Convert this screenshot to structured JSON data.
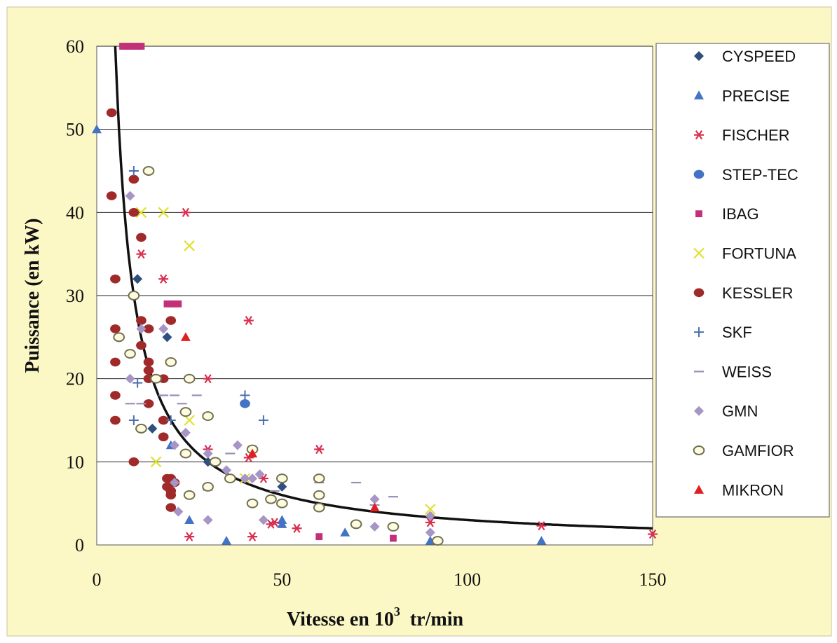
{
  "chart_data": {
    "type": "scatter",
    "title": "",
    "xlabel": "Vitesse en 10",
    "xlabel_sup": "3",
    "xlabel_tail": "tr/min",
    "ylabel": "Puissance (en kW)",
    "xlim": [
      0,
      150
    ],
    "ylim": [
      0,
      60
    ],
    "x_ticks": [
      "0",
      "50",
      "100",
      "150"
    ],
    "y_ticks": [
      "0",
      "10",
      "20",
      "30",
      "40",
      "50",
      "60"
    ],
    "grid": "horizontal",
    "legend_position": "right",
    "colors": {
      "background": "#fcf8c6",
      "plot": "#ffffff",
      "grid": "#222222",
      "curve": "#111111"
    },
    "curve": {
      "name": "",
      "type": "hyperbola",
      "constant": 300,
      "x_range": [
        5,
        150
      ]
    },
    "series": [
      {
        "name": "CYSPEED",
        "marker": "diamond",
        "color": "#2f4f7f",
        "points": [
          [
            11,
            32
          ],
          [
            19,
            25
          ],
          [
            15,
            14
          ],
          [
            30,
            10
          ],
          [
            50,
            7
          ]
        ]
      },
      {
        "name": "PRECISE",
        "marker": "triangle",
        "color": "#4472c4",
        "points": [
          [
            0,
            50
          ],
          [
            20,
            12
          ],
          [
            25,
            3
          ],
          [
            30,
            7
          ],
          [
            35,
            0.5
          ],
          [
            50,
            3
          ],
          [
            50,
            2.5
          ],
          [
            67,
            1.5
          ],
          [
            90,
            0.5
          ],
          [
            120,
            0.5
          ]
        ]
      },
      {
        "name": "FISCHER",
        "marker": "asterisk",
        "color": "#d8304f",
        "points": [
          [
            12,
            35
          ],
          [
            18,
            32
          ],
          [
            24,
            40
          ],
          [
            30,
            20
          ],
          [
            41,
            27
          ],
          [
            60,
            11.5
          ],
          [
            25,
            1
          ],
          [
            42,
            1
          ],
          [
            45,
            8
          ],
          [
            47,
            2.5
          ],
          [
            48,
            2.7
          ],
          [
            54,
            2
          ],
          [
            90,
            2.7
          ],
          [
            120,
            2.3
          ],
          [
            150,
            1.3
          ],
          [
            30,
            11.5
          ],
          [
            41,
            10.5
          ]
        ]
      },
      {
        "name": "STEP-TEC",
        "marker": "circle",
        "color": "#4472c4",
        "points": [
          [
            40,
            17
          ]
        ]
      },
      {
        "name": "IBAG",
        "marker": "square",
        "color": "#c2307a",
        "points": [
          [
            7,
            60
          ],
          [
            8,
            60
          ],
          [
            9,
            60
          ],
          [
            10,
            60
          ],
          [
            11,
            60
          ],
          [
            12,
            60
          ],
          [
            19,
            29
          ],
          [
            20,
            29
          ],
          [
            21,
            29
          ],
          [
            22,
            29
          ],
          [
            60,
            1
          ],
          [
            80,
            0.8
          ]
        ]
      },
      {
        "name": "FORTUNA",
        "marker": "x",
        "color": "#e0e030",
        "points": [
          [
            12,
            40
          ],
          [
            18,
            40
          ],
          [
            25,
            36
          ],
          [
            25,
            15
          ],
          [
            16,
            10
          ],
          [
            90,
            4.3
          ],
          [
            40,
            8
          ]
        ]
      },
      {
        "name": "KESSLER",
        "marker": "circle",
        "color": "#a02a2a",
        "points": [
          [
            4,
            52
          ],
          [
            4,
            42
          ],
          [
            5,
            32
          ],
          [
            5,
            26
          ],
          [
            5,
            22
          ],
          [
            5,
            18
          ],
          [
            5,
            15
          ],
          [
            10,
            44
          ],
          [
            10,
            40
          ],
          [
            12,
            37
          ],
          [
            12,
            27
          ],
          [
            12,
            24
          ],
          [
            14,
            26
          ],
          [
            14,
            22
          ],
          [
            14,
            21
          ],
          [
            14,
            20
          ],
          [
            14,
            17
          ],
          [
            10,
            10
          ],
          [
            18,
            20
          ],
          [
            18,
            15
          ],
          [
            18,
            13
          ],
          [
            20,
            27
          ],
          [
            19,
            8
          ],
          [
            19,
            7
          ],
          [
            20,
            7.5
          ],
          [
            20,
            6.5
          ],
          [
            20,
            6
          ],
          [
            20,
            4.5
          ],
          [
            20,
            8
          ],
          [
            21,
            7.5
          ]
        ]
      },
      {
        "name": "SKF",
        "marker": "plus",
        "color": "#4a6fb0",
        "points": [
          [
            10,
            45
          ],
          [
            10,
            15
          ],
          [
            11,
            19.5
          ],
          [
            20,
            15
          ],
          [
            40,
            18
          ],
          [
            45,
            15
          ]
        ]
      },
      {
        "name": "WEISS",
        "marker": "dash",
        "color": "#9a8fb8",
        "points": [
          [
            9,
            17
          ],
          [
            12,
            17
          ],
          [
            18,
            18
          ],
          [
            21,
            18
          ],
          [
            23,
            17
          ],
          [
            27,
            18
          ],
          [
            36,
            11
          ],
          [
            48,
            6.5
          ],
          [
            60,
            7.5
          ],
          [
            70,
            7.5
          ],
          [
            80,
            5.8
          ],
          [
            75,
            4.8
          ]
        ]
      },
      {
        "name": "GMN",
        "marker": "diamond",
        "color": "#a695c5",
        "points": [
          [
            9,
            42
          ],
          [
            12,
            26
          ],
          [
            18,
            26
          ],
          [
            9,
            20
          ],
          [
            21,
            12
          ],
          [
            21,
            7.5
          ],
          [
            22,
            4
          ],
          [
            30,
            3
          ],
          [
            30,
            11
          ],
          [
            35,
            9
          ],
          [
            38,
            12
          ],
          [
            40,
            8
          ],
          [
            42,
            8
          ],
          [
            45,
            3
          ],
          [
            50,
            5
          ],
          [
            75,
            5.5
          ],
          [
            75,
            2.2
          ],
          [
            90,
            1.5
          ],
          [
            90,
            3.5
          ],
          [
            24,
            13.5
          ],
          [
            44,
            8.5
          ]
        ]
      },
      {
        "name": "GAMFIOR",
        "marker": "circle-open",
        "color": "#707050",
        "points": [
          [
            6,
            25
          ],
          [
            9,
            23
          ],
          [
            10,
            30
          ],
          [
            12,
            14
          ],
          [
            14,
            45
          ],
          [
            16,
            20
          ],
          [
            20,
            22
          ],
          [
            25,
            20
          ],
          [
            24,
            16
          ],
          [
            24,
            11
          ],
          [
            25,
            6
          ],
          [
            30,
            15.5
          ],
          [
            30,
            7
          ],
          [
            32,
            10
          ],
          [
            36,
            8
          ],
          [
            42,
            11.5
          ],
          [
            42,
            5
          ],
          [
            47,
            5.5
          ],
          [
            50,
            8
          ],
          [
            50,
            5
          ],
          [
            60,
            8
          ],
          [
            60,
            6
          ],
          [
            60,
            4.5
          ],
          [
            70,
            2.5
          ],
          [
            80,
            2.2
          ],
          [
            92,
            0.5
          ]
        ]
      },
      {
        "name": "MIKRON",
        "marker": "triangle",
        "color": "#e02020",
        "points": [
          [
            24,
            25
          ],
          [
            42,
            11
          ],
          [
            75,
            4.5
          ]
        ]
      }
    ]
  }
}
